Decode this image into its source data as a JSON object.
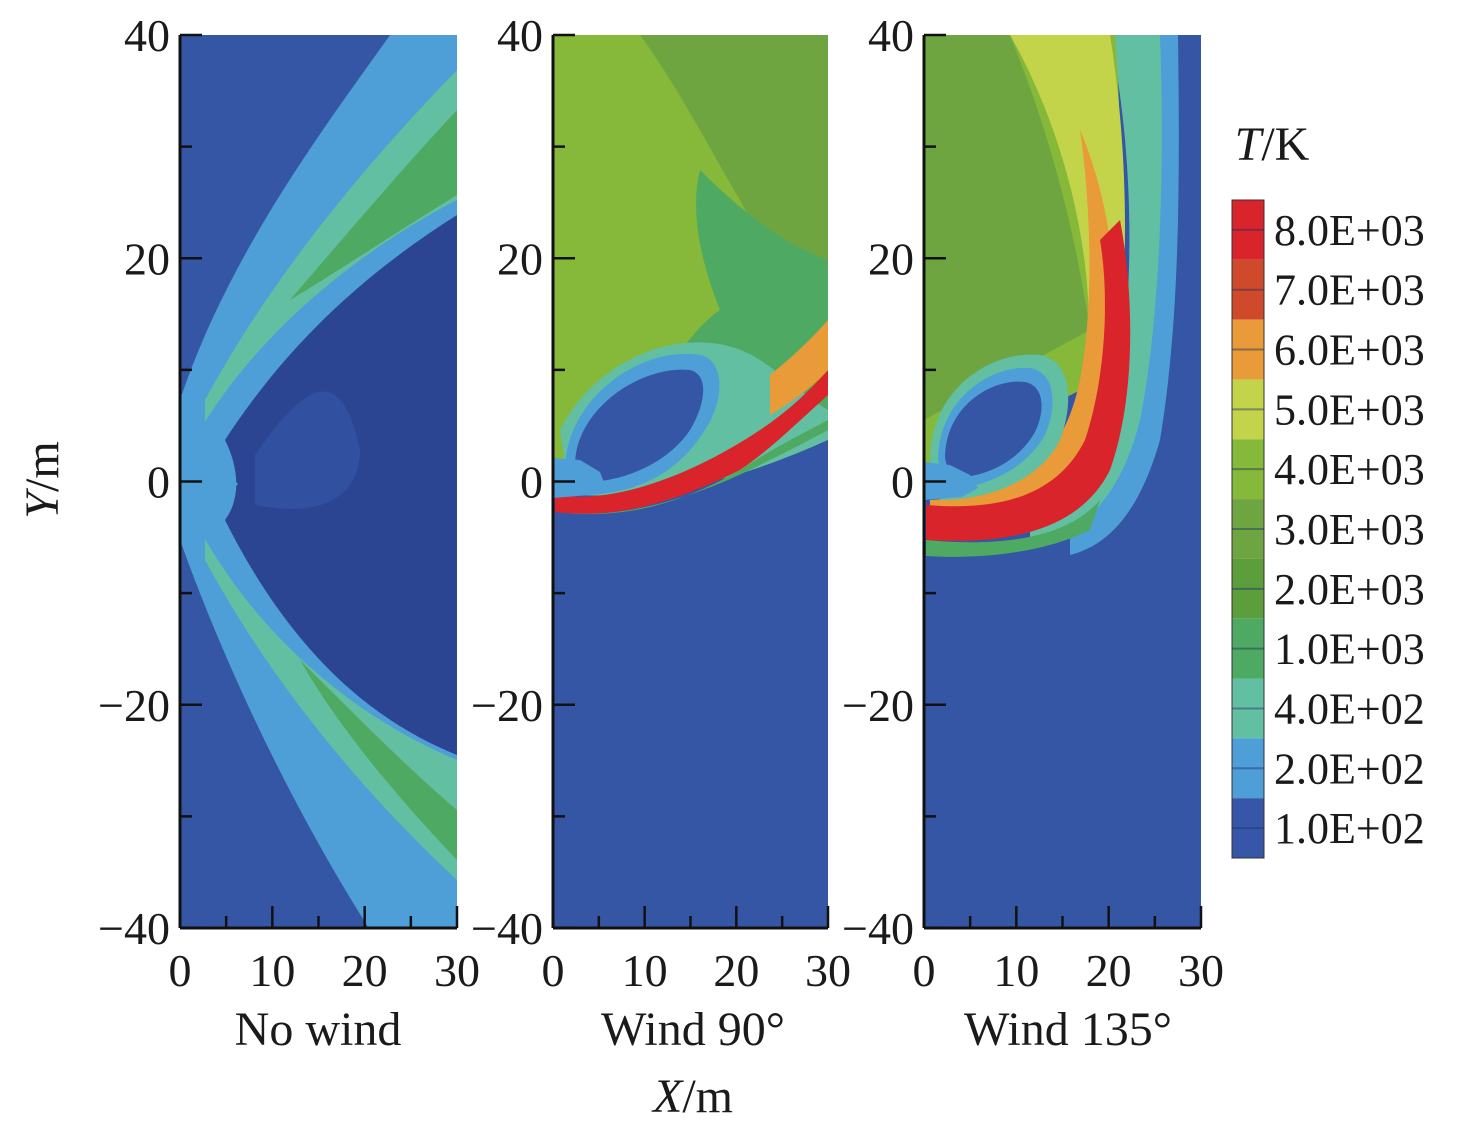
{
  "chart_data": {
    "type": "heatmap",
    "description_kind": "filled contour plots of temperature field",
    "xlabel": "X/m",
    "ylabel": "Y/m",
    "xlabel_italic": "X",
    "xlabel_unit": "/m",
    "ylabel_italic": "Y",
    "ylabel_unit": "/m",
    "xlim": [
      0,
      30
    ],
    "ylim": [
      -40,
      40
    ],
    "x_ticks": [
      "0",
      "10",
      "20",
      "30"
    ],
    "y_ticks": [
      "40",
      "20",
      "0",
      "−20",
      "−40"
    ],
    "y_tick_values": [
      40,
      20,
      0,
      -20,
      -40
    ],
    "x_tick_values": [
      0,
      10,
      20,
      30
    ],
    "panels": [
      {
        "label": "No wind",
        "show_y_ticks": true
      },
      {
        "label": "Wind 90°",
        "show_y_ticks": true
      },
      {
        "label": "Wind 135°",
        "show_y_ticks": true
      }
    ],
    "colorbar": {
      "title": "T/K",
      "title_italic": "T",
      "title_unit": "/K",
      "levels": [
        {
          "label": "8.0E+03",
          "value": 8000,
          "color": "#d9242b"
        },
        {
          "label": "7.0E+03",
          "value": 7000,
          "color": "#cf4a2a"
        },
        {
          "label": "6.0E+03",
          "value": 6000,
          "color": "#e89b38"
        },
        {
          "label": "5.0E+03",
          "value": 5000,
          "color": "#c4d44a"
        },
        {
          "label": "4.0E+03",
          "value": 4000,
          "color": "#86b83a"
        },
        {
          "label": "3.0E+03",
          "value": 3000,
          "color": "#6fa540"
        },
        {
          "label": "2.0E+03",
          "value": 2000,
          "color": "#5c9e3c"
        },
        {
          "label": "1.0E+03",
          "value": 1000,
          "color": "#4eaa62"
        },
        {
          "label": "4.0E+02",
          "value": 400,
          "color": "#63bfa2"
        },
        {
          "label": "2.0E+02",
          "value": 200,
          "color": "#4e9ed8"
        },
        {
          "label": "1.0E+02",
          "value": 100,
          "color": "#3856a8"
        }
      ],
      "extra_colors": [
        "#b83a2a",
        "#2e4a9c"
      ]
    },
    "colors": {
      "background_field": "#3555a5",
      "inner_dark": "#2b4592",
      "light_blue": "#4e9ed8",
      "teal": "#63bfa2",
      "green": "#4eaa62",
      "olive": "#6fa540",
      "lime": "#86b83a",
      "yellow": "#c4d44a",
      "orange": "#e89b38",
      "red": "#d9242b"
    }
  }
}
